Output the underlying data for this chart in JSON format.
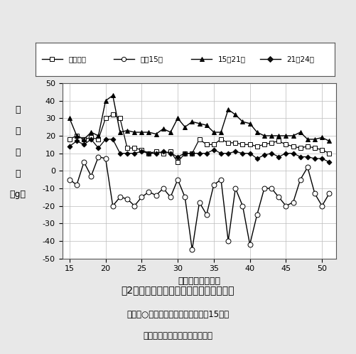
{
  "title": "図2　メロン果重の時間帯別増減量の推移",
  "xlabel": "交配後日数（日）",
  "ylabel_chars": [
    "果",
    "重",
    "変",
    "化",
    "（g）"
  ],
  "xlim": [
    14,
    52
  ],
  "ylim": [
    -50,
    50
  ],
  "xticks": [
    15,
    20,
    25,
    30,
    35,
    40,
    45,
    50
  ],
  "yticks": [
    -50,
    -40,
    -30,
    -20,
    -10,
    0,
    10,
    20,
    30,
    40,
    50
  ],
  "legend_labels": [
    "０～５時",
    "５～15時",
    "15～21時",
    "21～24時"
  ],
  "series": {
    "0_5": {
      "x": [
        15,
        16,
        17,
        18,
        19,
        20,
        21,
        22,
        23,
        24,
        25,
        26,
        27,
        28,
        29,
        30,
        31,
        32,
        33,
        34,
        35,
        36,
        37,
        38,
        39,
        40,
        41,
        42,
        43,
        44,
        45,
        46,
        47,
        48,
        49,
        50,
        51
      ],
      "y": [
        18,
        20,
        18,
        19,
        18,
        30,
        32,
        30,
        13,
        13,
        12,
        10,
        11,
        10,
        11,
        5,
        10,
        10,
        18,
        15,
        15,
        18,
        16,
        16,
        15,
        15,
        14,
        15,
        16,
        17,
        15,
        14,
        13,
        14,
        13,
        12,
        10
      ]
    },
    "5_15": {
      "x": [
        15,
        16,
        17,
        18,
        19,
        20,
        21,
        22,
        23,
        24,
        25,
        26,
        27,
        28,
        29,
        30,
        31,
        32,
        33,
        34,
        35,
        36,
        37,
        38,
        39,
        40,
        41,
        42,
        43,
        44,
        45,
        46,
        47,
        48,
        49,
        50,
        51
      ],
      "y": [
        -5,
        -8,
        5,
        -3,
        8,
        7,
        -20,
        -15,
        -16,
        -20,
        -15,
        -12,
        -14,
        -10,
        -15,
        -5,
        -15,
        -45,
        -18,
        -25,
        -8,
        -5,
        -40,
        -10,
        -20,
        -42,
        -25,
        -10,
        -10,
        -15,
        -20,
        -18,
        -5,
        2,
        -13,
        -20,
        -13
      ]
    },
    "15_21": {
      "x": [
        15,
        16,
        17,
        18,
        19,
        20,
        21,
        22,
        23,
        24,
        25,
        26,
        27,
        28,
        29,
        30,
        31,
        32,
        33,
        34,
        35,
        36,
        37,
        38,
        39,
        40,
        41,
        42,
        43,
        44,
        45,
        46,
        47,
        48,
        49,
        50,
        51
      ],
      "y": [
        30,
        20,
        18,
        22,
        20,
        40,
        43,
        22,
        23,
        22,
        22,
        22,
        21,
        24,
        22,
        30,
        25,
        28,
        27,
        26,
        22,
        22,
        35,
        32,
        28,
        27,
        22,
        20,
        20,
        20,
        20,
        20,
        22,
        18,
        18,
        19,
        17
      ]
    },
    "21_24": {
      "x": [
        15,
        16,
        17,
        18,
        19,
        20,
        21,
        22,
        23,
        24,
        25,
        26,
        27,
        28,
        29,
        30,
        31,
        32,
        33,
        34,
        35,
        36,
        37,
        38,
        39,
        40,
        41,
        42,
        43,
        44,
        45,
        46,
        47,
        48,
        49,
        50,
        51
      ],
      "y": [
        14,
        17,
        15,
        18,
        13,
        18,
        18,
        10,
        10,
        10,
        11,
        10,
        10,
        11,
        10,
        8,
        10,
        10,
        10,
        10,
        12,
        10,
        10,
        11,
        10,
        10,
        7,
        9,
        10,
        8,
        10,
        10,
        8,
        8,
        7,
        7,
        5
      ]
    }
  },
  "note_line1": "注　－○－　は５時の果重に対する15時に",
  "note_line2": "　　　　　おける増減量を示す",
  "background_color": "#e8e8e8",
  "chart_bg": "#ffffff"
}
